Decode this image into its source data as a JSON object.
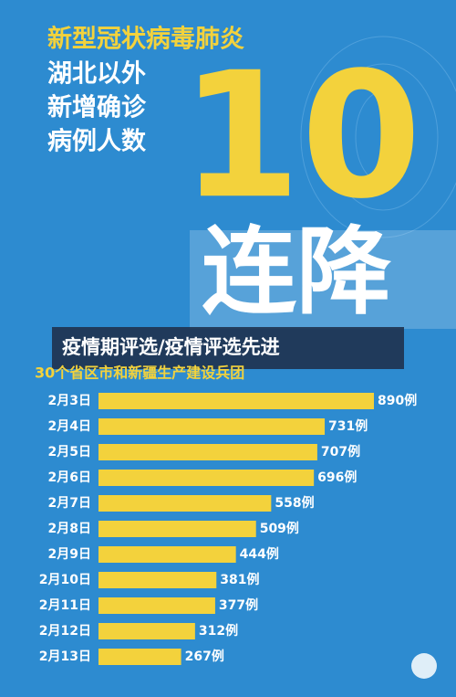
{
  "chart_data": {
    "type": "bar",
    "title": "新型冠状病毒肺炎",
    "subtitle": [
      "湖北以外",
      "新增确诊",
      "病例人数"
    ],
    "annotations": [
      "10",
      "连降"
    ],
    "banner": "疫情期评选/疫情评选先进",
    "caption": "30个省区市和新疆生产建设兵团",
    "categories": [
      "2月3日",
      "2月4日",
      "2月5日",
      "2月6日",
      "2月7日",
      "2月8日",
      "2月9日",
      "2月10日",
      "2月11日",
      "2月12日",
      "2月13日"
    ],
    "values": [
      890,
      731,
      707,
      696,
      558,
      509,
      444,
      381,
      377,
      312,
      267
    ],
    "value_labels": [
      "890例",
      "731例",
      "707例",
      "696例",
      "558例",
      "509例",
      "444例",
      "381例",
      "377例",
      "312例",
      "267例"
    ],
    "color": "#f3d23c"
  }
}
